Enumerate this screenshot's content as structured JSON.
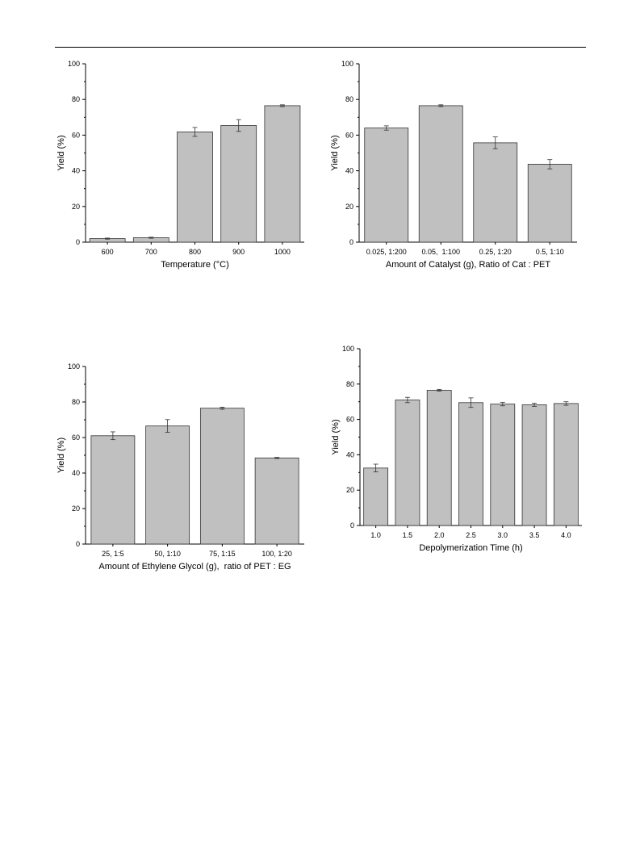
{
  "chart_data": [
    {
      "type": "bar",
      "categories": [
        "600",
        "700",
        "800",
        "900",
        "1000"
      ],
      "values": [
        2.0,
        2.5,
        61.8,
        65.4,
        76.5
      ],
      "errors": [
        0.3,
        0.3,
        2.5,
        3.3,
        0.5
      ],
      "xlabel": "Temperature (°C)",
      "ylabel": "Yield (%)",
      "ylim": [
        0,
        100
      ],
      "yticks": [
        "0",
        "20",
        "40",
        "60",
        "80",
        "100"
      ],
      "grid": false
    },
    {
      "type": "bar",
      "categories": [
        "0.025, 1:200",
        "0.05,  1:100",
        "0.25, 1:20",
        "0.5, 1:10"
      ],
      "values": [
        64.0,
        76.5,
        55.7,
        43.7
      ],
      "errors": [
        1.2,
        0.5,
        3.3,
        2.6
      ],
      "xlabel": "Amount of Catalyst (g), Ratio of Cat : PET",
      "ylabel": "Yield (%)",
      "ylim": [
        0,
        100
      ],
      "yticks": [
        "0",
        "20",
        "40",
        "60",
        "80",
        "100"
      ],
      "grid": false
    },
    {
      "type": "bar",
      "categories": [
        "25, 1:5",
        "50, 1:10",
        "75, 1:15",
        "100, 1:20"
      ],
      "values": [
        61.0,
        66.5,
        76.5,
        48.5
      ],
      "errors": [
        2.2,
        3.6,
        0.6,
        0.3
      ],
      "xlabel": "Amount of Ethylene Glycol (g),  ratio of PET : EG",
      "ylabel": "Yield (%)",
      "ylim": [
        0,
        100
      ],
      "yticks": [
        "0",
        "20",
        "40",
        "60",
        "80",
        "100"
      ],
      "grid": false
    },
    {
      "type": "bar",
      "categories": [
        "1.0",
        "1.5",
        "2.0",
        "2.5",
        "3.0",
        "3.5",
        "4.0"
      ],
      "values": [
        32.5,
        71.0,
        76.5,
        69.5,
        68.7,
        68.3,
        69.0
      ],
      "errors": [
        2.2,
        1.5,
        0.5,
        2.7,
        1.0,
        0.9,
        1.0
      ],
      "xlabel": "Depolymerization Time (h)",
      "ylabel": "Yield (%)",
      "ylim": [
        0,
        100
      ],
      "yticks": [
        "0",
        "20",
        "40",
        "60",
        "80",
        "100"
      ],
      "grid": false
    }
  ],
  "colors": {
    "bar_fill": "#c0c0c0",
    "bar_stroke": "#333333",
    "axis": "#000000",
    "error_bar": "#333333"
  }
}
